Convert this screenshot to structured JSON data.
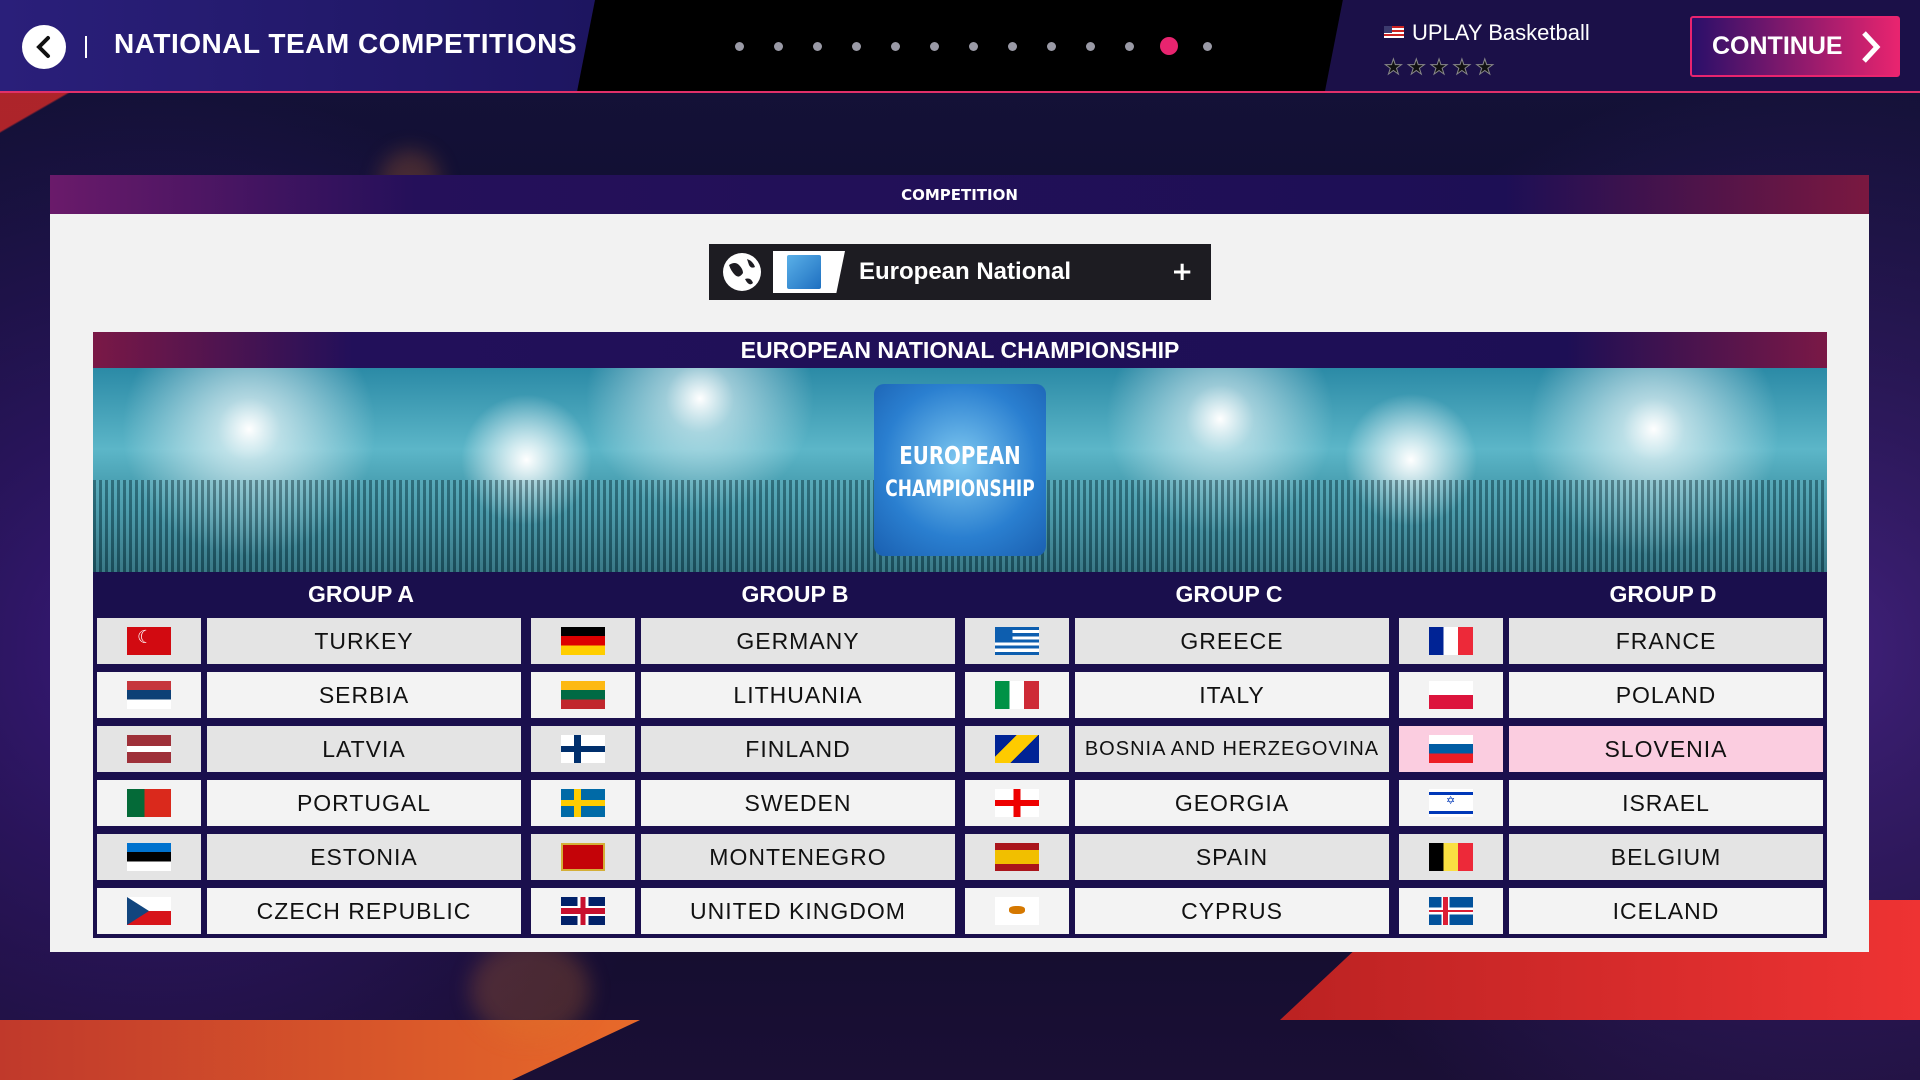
{
  "header": {
    "title": "NATIONAL TEAM COMPETITIONS",
    "steps_total": 13,
    "active_step": 12,
    "profile_name": "UPLAY Basketball",
    "profile_flag": "us-flag",
    "star_rating": 0,
    "stars_total": 5,
    "continue_label": "CONTINUE"
  },
  "panel": {
    "title": "COMPETITION"
  },
  "selector": {
    "name": "European National",
    "plus": "+",
    "icon": "globe-icon"
  },
  "championship": {
    "title": "EUROPEAN NATIONAL CHAMPIONSHIP",
    "logo_text": "EUROPEAN CHAMPIONSHIP"
  },
  "colors": {
    "accent": "#e8246f",
    "header_purple": "#1d0f55",
    "highlight": "#fbcde0"
  },
  "groups": [
    {
      "name": "GROUP A",
      "teams": [
        {
          "name": "TURKEY",
          "flag": "turkey"
        },
        {
          "name": "SERBIA",
          "flag": "serbia"
        },
        {
          "name": "LATVIA",
          "flag": "latvia"
        },
        {
          "name": "PORTUGAL",
          "flag": "portugal"
        },
        {
          "name": "ESTONIA",
          "flag": "estonia"
        },
        {
          "name": "CZECH REPUBLIC",
          "flag": "czech"
        }
      ]
    },
    {
      "name": "GROUP B",
      "teams": [
        {
          "name": "GERMANY",
          "flag": "germany"
        },
        {
          "name": "LITHUANIA",
          "flag": "lithuania"
        },
        {
          "name": "FINLAND",
          "flag": "finland"
        },
        {
          "name": "SWEDEN",
          "flag": "sweden"
        },
        {
          "name": "MONTENEGRO",
          "flag": "montenegro"
        },
        {
          "name": "UNITED KINGDOM",
          "flag": "uk"
        }
      ]
    },
    {
      "name": "GROUP C",
      "teams": [
        {
          "name": "GREECE",
          "flag": "greece"
        },
        {
          "name": "ITALY",
          "flag": "italy"
        },
        {
          "name": "BOSNIA AND HERZEGOVINA",
          "flag": "bosnia"
        },
        {
          "name": "GEORGIA",
          "flag": "georgia"
        },
        {
          "name": "SPAIN",
          "flag": "spain"
        },
        {
          "name": "CYPRUS",
          "flag": "cyprus"
        }
      ]
    },
    {
      "name": "GROUP D",
      "teams": [
        {
          "name": "FRANCE",
          "flag": "france"
        },
        {
          "name": "POLAND",
          "flag": "poland"
        },
        {
          "name": "SLOVENIA",
          "flag": "slovenia",
          "highlighted": true
        },
        {
          "name": "ISRAEL",
          "flag": "israel"
        },
        {
          "name": "BELGIUM",
          "flag": "belgium"
        },
        {
          "name": "ICELAND",
          "flag": "iceland"
        }
      ]
    }
  ]
}
